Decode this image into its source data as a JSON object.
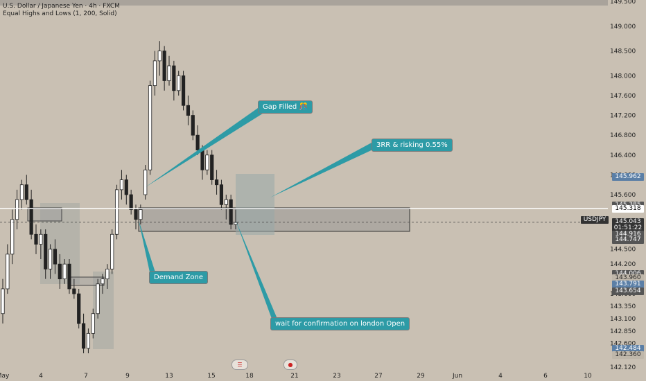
{
  "header": {
    "title": "U.S. Dollar / Japanese Yen · 4h · FXCM",
    "indicator": "Equal Highs and Lows (1, 200, Solid)"
  },
  "symbol": "USDJPY",
  "price_tags": [
    {
      "label": "145.962",
      "price": 145.962,
      "color": "#5b7fa6"
    },
    {
      "label": "145.385",
      "price": 145.385,
      "color": "#555555"
    },
    {
      "label": "145.318",
      "price": 145.318,
      "color": "#ffffff",
      "text_color": "#000000"
    },
    {
      "label": "145.051",
      "price": 145.051,
      "color": "#bfb7aa",
      "text_color": "#222222"
    },
    {
      "label": "145.043",
      "price": 145.043,
      "color": "#333333"
    },
    {
      "label": "01:51:22",
      "price": 144.92,
      "color": "#333333"
    },
    {
      "label": "144.916",
      "price": 144.8,
      "color": "#555555"
    },
    {
      "label": "144.747",
      "price": 144.68,
      "color": "#555555"
    },
    {
      "label": "144.006",
      "price": 144.006,
      "color": "#555555"
    },
    {
      "label": "143.960",
      "price": 143.92,
      "color": "#bfb7aa",
      "text_color": "#222222"
    },
    {
      "label": "143.791",
      "price": 143.791,
      "color": "#5b7fa6"
    },
    {
      "label": "143.654",
      "price": 143.654,
      "color": "#555555"
    },
    {
      "label": "142.484",
      "price": 142.484,
      "color": "#5b7fa6"
    },
    {
      "label": "142.360",
      "price": 142.36,
      "color": "#bfb7aa",
      "text_color": "#222222"
    }
  ],
  "annotations": [
    {
      "id": "gap",
      "text": "Gap Filled 🎊"
    },
    {
      "id": "rr",
      "text": "3RR & risking 0.55%"
    },
    {
      "id": "demand",
      "text": "Demand Zone"
    },
    {
      "id": "confirm",
      "text": "wait for confirmation on london Open"
    }
  ],
  "colors": {
    "background": "#c9c0b3",
    "up_candle": "#ffffff",
    "down_candle": "#222222",
    "annotation": "#2d9ba6",
    "zone": "#8f8f8f"
  },
  "chart_data": {
    "type": "candlestick",
    "title": "U.S. Dollar / Japanese Yen · 4h · FXCM",
    "ylim": [
      142.12,
      149.5
    ],
    "y_ticks": [
      142.12,
      142.6,
      142.85,
      143.1,
      143.35,
      143.6,
      144.2,
      144.5,
      145.6,
      146.0,
      146.4,
      146.8,
      147.2,
      147.6,
      148.0,
      148.5,
      149.0,
      149.5
    ],
    "x_ticks": [
      "May",
      "4",
      "7",
      "9",
      "13",
      "15",
      "18",
      "21",
      "23",
      "27",
      "29",
      "Jun",
      "4",
      "6",
      "10"
    ],
    "last_price": 145.043,
    "horizontal_line": 145.318,
    "candles": [
      {
        "o": 143.2,
        "h": 143.9,
        "l": 143.0,
        "c": 143.7
      },
      {
        "o": 143.7,
        "h": 144.6,
        "l": 143.6,
        "c": 144.4
      },
      {
        "o": 144.4,
        "h": 145.3,
        "l": 144.2,
        "c": 145.1
      },
      {
        "o": 145.1,
        "h": 145.7,
        "l": 144.9,
        "c": 145.5
      },
      {
        "o": 145.5,
        "h": 145.9,
        "l": 145.3,
        "c": 145.8
      },
      {
        "o": 145.8,
        "h": 146.0,
        "l": 145.4,
        "c": 145.5
      },
      {
        "o": 145.5,
        "h": 145.7,
        "l": 144.7,
        "c": 144.8
      },
      {
        "o": 144.8,
        "h": 145.0,
        "l": 144.4,
        "c": 144.6
      },
      {
        "o": 144.6,
        "h": 144.9,
        "l": 144.3,
        "c": 144.8
      },
      {
        "o": 144.8,
        "h": 144.9,
        "l": 143.9,
        "c": 144.1
      },
      {
        "o": 144.1,
        "h": 144.6,
        "l": 143.9,
        "c": 144.5
      },
      {
        "o": 144.5,
        "h": 144.7,
        "l": 144.0,
        "c": 144.2
      },
      {
        "o": 144.2,
        "h": 144.4,
        "l": 143.7,
        "c": 143.9
      },
      {
        "o": 143.9,
        "h": 144.3,
        "l": 143.8,
        "c": 144.2
      },
      {
        "o": 144.2,
        "h": 144.3,
        "l": 143.6,
        "c": 143.7
      },
      {
        "o": 143.7,
        "h": 143.9,
        "l": 143.5,
        "c": 143.6
      },
      {
        "o": 143.6,
        "h": 143.7,
        "l": 142.9,
        "c": 143.0
      },
      {
        "o": 143.0,
        "h": 143.2,
        "l": 142.4,
        "c": 142.5
      },
      {
        "o": 142.5,
        "h": 142.9,
        "l": 142.4,
        "c": 142.8
      },
      {
        "o": 142.8,
        "h": 143.3,
        "l": 142.7,
        "c": 143.2
      },
      {
        "o": 143.2,
        "h": 143.9,
        "l": 143.1,
        "c": 143.8
      },
      {
        "o": 143.8,
        "h": 144.0,
        "l": 143.6,
        "c": 143.9
      },
      {
        "o": 143.9,
        "h": 144.2,
        "l": 143.7,
        "c": 144.1
      },
      {
        "o": 144.1,
        "h": 144.9,
        "l": 144.0,
        "c": 144.8
      },
      {
        "o": 144.8,
        "h": 145.8,
        "l": 144.7,
        "c": 145.7
      },
      {
        "o": 145.7,
        "h": 146.1,
        "l": 145.5,
        "c": 145.9
      },
      {
        "o": 145.9,
        "h": 146.0,
        "l": 145.4,
        "c": 145.6
      },
      {
        "o": 145.6,
        "h": 145.7,
        "l": 145.2,
        "c": 145.3
      },
      {
        "o": 145.3,
        "h": 145.4,
        "l": 144.9,
        "c": 145.1
      },
      {
        "o": 145.1,
        "h": 145.4,
        "l": 145.0,
        "c": 145.3
      },
      {
        "o": 145.6,
        "h": 146.2,
        "l": 145.5,
        "c": 146.1
      },
      {
        "o": 146.1,
        "h": 147.9,
        "l": 146.0,
        "c": 147.8
      },
      {
        "o": 147.8,
        "h": 148.5,
        "l": 147.6,
        "c": 148.3
      },
      {
        "o": 148.3,
        "h": 148.7,
        "l": 148.0,
        "c": 148.5
      },
      {
        "o": 148.5,
        "h": 148.6,
        "l": 147.7,
        "c": 147.9
      },
      {
        "o": 147.9,
        "h": 148.4,
        "l": 147.8,
        "c": 148.2
      },
      {
        "o": 148.2,
        "h": 148.3,
        "l": 147.5,
        "c": 147.7
      },
      {
        "o": 147.7,
        "h": 148.1,
        "l": 147.6,
        "c": 148.0
      },
      {
        "o": 148.0,
        "h": 148.1,
        "l": 147.3,
        "c": 147.4
      },
      {
        "o": 147.4,
        "h": 147.6,
        "l": 147.0,
        "c": 147.2
      },
      {
        "o": 147.2,
        "h": 147.3,
        "l": 146.7,
        "c": 146.8
      },
      {
        "o": 146.8,
        "h": 147.0,
        "l": 146.4,
        "c": 146.5
      },
      {
        "o": 146.5,
        "h": 146.6,
        "l": 145.9,
        "c": 146.1
      },
      {
        "o": 146.1,
        "h": 146.5,
        "l": 146.0,
        "c": 146.4
      },
      {
        "o": 146.4,
        "h": 146.5,
        "l": 145.8,
        "c": 145.9
      },
      {
        "o": 145.9,
        "h": 146.1,
        "l": 145.6,
        "c": 145.8
      },
      {
        "o": 145.8,
        "h": 145.9,
        "l": 145.3,
        "c": 145.4
      },
      {
        "o": 145.4,
        "h": 145.6,
        "l": 145.1,
        "c": 145.5
      },
      {
        "o": 145.5,
        "h": 145.6,
        "l": 144.9,
        "c": 145.0
      },
      {
        "o": 145.0,
        "h": 145.3,
        "l": 144.9,
        "c": 145.04
      }
    ]
  }
}
